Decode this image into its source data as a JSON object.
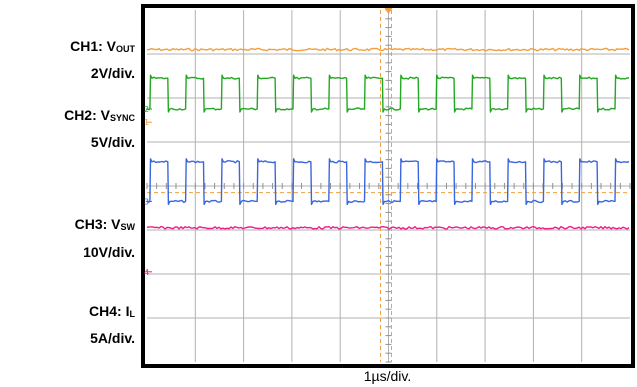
{
  "chart_data": {
    "type": "line",
    "title": "",
    "xlabel": "1µs/div.",
    "time_per_div_us": 1,
    "divisions": {
      "horizontal": 10,
      "vertical": 8
    },
    "grid": true,
    "channels": [
      {
        "id": "CH1",
        "name": "CH1: V",
        "sub": "OUT",
        "scale": "2V/div.",
        "color": "#f0a040",
        "trace": "dc",
        "level_div": 3.1,
        "marker": "1"
      },
      {
        "id": "CH2",
        "name": "CH2: V",
        "sub": "SYNC",
        "scale": "5V/div.",
        "color": "#22a822",
        "trace": "square",
        "low_div": 1.75,
        "high_div": 2.45,
        "cycles_visible": 13.5,
        "marker": "2"
      },
      {
        "id": "CH3",
        "name": "CH3: V",
        "sub": "SW",
        "scale": "10V/div.",
        "color": "#3a66e0",
        "trace": "square",
        "low_div": -0.35,
        "high_div": 0.55,
        "cycles_visible": 13.5,
        "marker": "3"
      },
      {
        "id": "CH4",
        "name": "CH4: I",
        "sub": "L",
        "scale": "5A/div.",
        "color": "#e8208a",
        "trace": "dc",
        "level_div": -0.95,
        "marker": "4"
      }
    ]
  }
}
